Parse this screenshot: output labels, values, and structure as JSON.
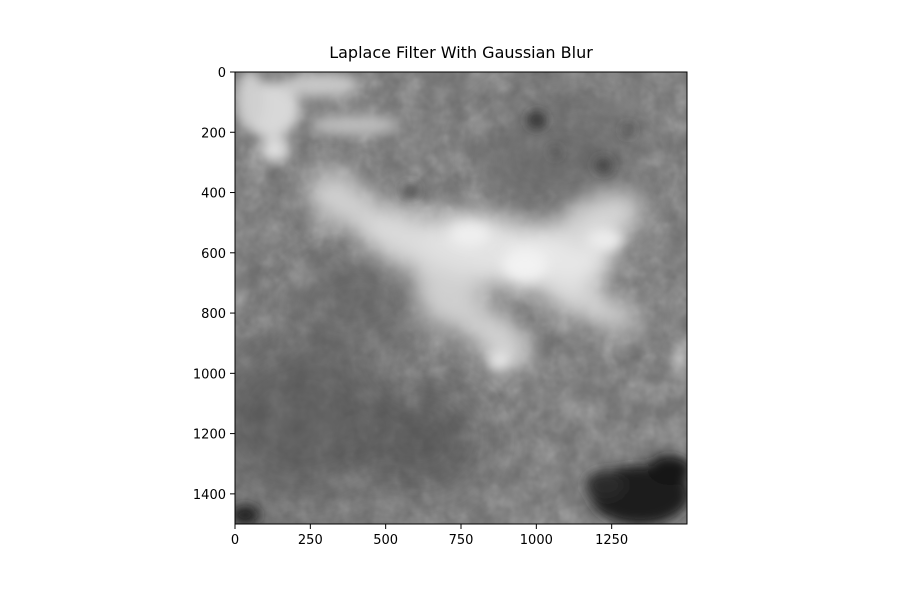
{
  "title": "Laplace Filter With Gaussian Blur",
  "colormap": "gray",
  "x_axis": {
    "ticks": [
      0,
      250,
      500,
      750,
      1000,
      1250
    ],
    "range": [
      0,
      1500
    ]
  },
  "y_axis": {
    "ticks": [
      0,
      200,
      400,
      600,
      800,
      1000,
      1200,
      1400
    ],
    "range": [
      0,
      1500
    ],
    "inverted": true
  },
  "colors": {
    "frame": "#000000",
    "background": "#ffffff",
    "base_gray": "#6e6e6e",
    "bright_region": "#e8e8e8",
    "dark_region": "#1a1a1a"
  }
}
